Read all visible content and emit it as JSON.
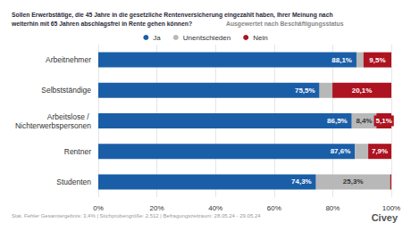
{
  "chart_data": {
    "type": "bar",
    "orientation": "horizontal",
    "stacked": true,
    "data_labels": true,
    "grid": true,
    "legend": "top",
    "title": "Sollen Erwerbstätige, die 45 Jahre in die gesetzliche Rentenversicherung eingezahlt haben, Ihrer Meinung nach weiterhin mit 65 Jahren abschlagsfrei in Rente gehen können?",
    "subtitle": "Ausgewertet nach Beschäftigungsstatus",
    "footnote": "Stat. Fehler Gesamtergebnis: 3,4% | Stichprobengröße: 2.512 | Befragungszeitraum: 28.05.24 - 29.05.24",
    "logo": "Civey",
    "categories": [
      "Arbeitnehmer",
      "Selbstständige",
      "Arbeitslose / Nichterwerbspersonen",
      "Rentner",
      "Studenten"
    ],
    "series": [
      {
        "name": "Ja",
        "color": "#1b5ea8",
        "values": [
          88.1,
          75.5,
          86.5,
          87.6,
          74.3
        ],
        "value_labels": [
          "88,1%",
          "75,5%",
          "86,5%",
          "87,6%",
          "74,3%"
        ]
      },
      {
        "name": "Unentschieden",
        "color": "#b8b8b8",
        "values": [
          2.4,
          4.4,
          8.4,
          4.5,
          25.3
        ],
        "value_labels": [
          null,
          null,
          "8,4%",
          null,
          "25,3%"
        ]
      },
      {
        "name": "Nein",
        "color": "#ad1320",
        "values": [
          9.5,
          20.1,
          5.1,
          7.9,
          0.4
        ],
        "value_labels": [
          "9,5%",
          "20,1%",
          "5,1%",
          "7,9%",
          null
        ]
      }
    ],
    "xlim": [
      0,
      100
    ],
    "xticks": [
      {
        "value": 0,
        "label": "0%"
      },
      {
        "value": 20,
        "label": "20%"
      },
      {
        "value": 40,
        "label": "40%"
      },
      {
        "value": 60,
        "label": "60%"
      },
      {
        "value": 80,
        "label": "80%"
      },
      {
        "value": 100,
        "label": "100%"
      }
    ]
  }
}
